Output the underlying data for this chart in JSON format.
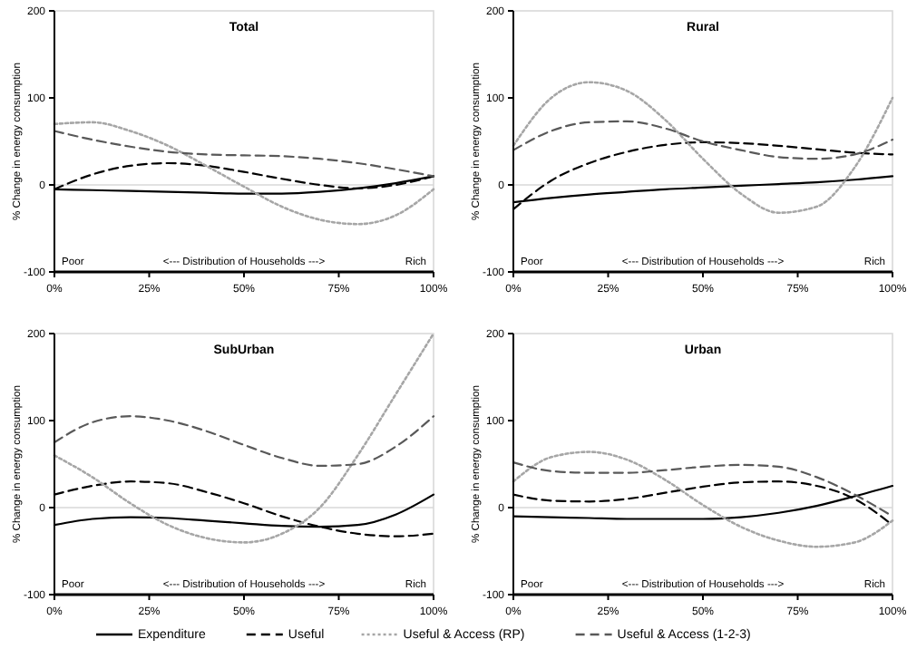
{
  "chart_data": [
    {
      "type": "line",
      "title": "Total",
      "ylabel": "% Change in energy consumption",
      "x": [
        0,
        10,
        20,
        30,
        40,
        50,
        60,
        70,
        80,
        90,
        100
      ],
      "xlim": [
        0,
        100
      ],
      "xticks": [
        {
          "value": 0,
          "label": "0%"
        },
        {
          "value": 25,
          "label": "25%"
        },
        {
          "value": 50,
          "label": "50%"
        },
        {
          "value": 75,
          "label": "75%"
        },
        {
          "value": 100,
          "label": "100%"
        }
      ],
      "ylim": [
        -100,
        200
      ],
      "yticks": [
        -100,
        0,
        100,
        200
      ],
      "grid": false,
      "legend": "bottom",
      "marker": "none",
      "annotations": [
        "Poor",
        "<--- Distribution of Households --->",
        "Rich"
      ],
      "ref_lines": [
        {
          "axis": "y",
          "value": 0,
          "color": "#d9d9d9"
        }
      ],
      "series": [
        {
          "name": "Expenditure",
          "color": "#000000",
          "line_style": "solid",
          "values": [
            -5,
            -6,
            -7,
            -8,
            -9,
            -10,
            -10,
            -8,
            -4,
            2,
            10
          ]
        },
        {
          "name": "Useful",
          "color": "#000000",
          "line_style": "dashed",
          "values": [
            -5,
            12,
            22,
            25,
            22,
            15,
            7,
            0,
            -4,
            0,
            10
          ]
        },
        {
          "name": "Useful & Access (RP)",
          "color": "#a6a6a6",
          "line_style": "dotted",
          "values": [
            70,
            72,
            62,
            45,
            22,
            -2,
            -25,
            -40,
            -45,
            -35,
            -5
          ]
        },
        {
          "name": "Useful & Access (1-2-3)",
          "color": "#595959",
          "line_style": "dashed",
          "values": [
            62,
            52,
            44,
            38,
            35,
            34,
            33,
            30,
            25,
            18,
            10
          ]
        }
      ]
    },
    {
      "type": "line",
      "title": "Rural",
      "ylabel": "% Change in energy consumption",
      "x": [
        0,
        10,
        20,
        30,
        40,
        50,
        60,
        70,
        80,
        90,
        100
      ],
      "xlim": [
        0,
        100
      ],
      "xticks": [
        {
          "value": 0,
          "label": "0%"
        },
        {
          "value": 25,
          "label": "25%"
        },
        {
          "value": 50,
          "label": "50%"
        },
        {
          "value": 75,
          "label": "75%"
        },
        {
          "value": 100,
          "label": "100%"
        }
      ],
      "ylim": [
        -100,
        200
      ],
      "yticks": [
        -100,
        0,
        100,
        200
      ],
      "grid": false,
      "legend": false,
      "marker": "none",
      "annotations": [
        "Poor",
        "<--- Distribution of Households --->",
        "Rich"
      ],
      "ref_lines": [
        {
          "axis": "y",
          "value": 0,
          "color": "#d9d9d9"
        }
      ],
      "series": [
        {
          "color": "#000000",
          "line_style": "solid",
          "values": [
            -20,
            -15,
            -11,
            -8,
            -5,
            -3,
            -1,
            1,
            3,
            6,
            10
          ]
        },
        {
          "color": "#000000",
          "line_style": "dashed",
          "values": [
            -28,
            5,
            25,
            38,
            46,
            49,
            48,
            45,
            41,
            37,
            35
          ]
        },
        {
          "color": "#a6a6a6",
          "line_style": "dotted",
          "values": [
            45,
            100,
            118,
            108,
            75,
            30,
            -10,
            -32,
            -25,
            20,
            100
          ]
        },
        {
          "color": "#595959",
          "line_style": "dashed",
          "values": [
            40,
            62,
            72,
            73,
            65,
            50,
            40,
            32,
            30,
            35,
            52
          ]
        }
      ]
    },
    {
      "type": "line",
      "title": "SubUrban",
      "ylabel": "% Change in energy consumption",
      "x": [
        0,
        10,
        20,
        30,
        40,
        50,
        60,
        70,
        80,
        90,
        100
      ],
      "xlim": [
        0,
        100
      ],
      "xticks": [
        {
          "value": 0,
          "label": "0%"
        },
        {
          "value": 25,
          "label": "25%"
        },
        {
          "value": 50,
          "label": "50%"
        },
        {
          "value": 75,
          "label": "75%"
        },
        {
          "value": 100,
          "label": "100%"
        }
      ],
      "ylim": [
        -100,
        200
      ],
      "yticks": [
        -100,
        0,
        100,
        200
      ],
      "grid": false,
      "legend": false,
      "marker": "none",
      "annotations": [
        "Poor",
        "<--- Distribution of Households --->",
        "Rich"
      ],
      "ref_lines": [
        {
          "axis": "y",
          "value": 0,
          "color": "#d9d9d9"
        }
      ],
      "series": [
        {
          "color": "#000000",
          "line_style": "solid",
          "values": [
            -20,
            -13,
            -11,
            -12,
            -15,
            -18,
            -21,
            -22,
            -20,
            -8,
            15
          ]
        },
        {
          "color": "#000000",
          "line_style": "dashed",
          "values": [
            15,
            25,
            30,
            28,
            18,
            5,
            -10,
            -22,
            -30,
            -33,
            -30
          ]
        },
        {
          "color": "#a6a6a6",
          "line_style": "dotted",
          "values": [
            60,
            35,
            5,
            -20,
            -35,
            -40,
            -30,
            0,
            60,
            130,
            200
          ]
        },
        {
          "color": "#595959",
          "line_style": "dashed",
          "values": [
            75,
            98,
            105,
            100,
            88,
            72,
            57,
            48,
            50,
            70,
            105
          ]
        }
      ]
    },
    {
      "type": "line",
      "title": "Urban",
      "ylabel": "% Change in energy consumption",
      "x": [
        0,
        10,
        20,
        30,
        40,
        50,
        60,
        70,
        80,
        90,
        100
      ],
      "xlim": [
        0,
        100
      ],
      "xticks": [
        {
          "value": 0,
          "label": "0%"
        },
        {
          "value": 25,
          "label": "25%"
        },
        {
          "value": 50,
          "label": "50%"
        },
        {
          "value": 75,
          "label": "75%"
        },
        {
          "value": 100,
          "label": "100%"
        }
      ],
      "ylim": [
        -100,
        200
      ],
      "yticks": [
        -100,
        0,
        100,
        200
      ],
      "grid": false,
      "legend": false,
      "marker": "none",
      "annotations": [
        "Poor",
        "<--- Distribution of Households --->",
        "Rich"
      ],
      "ref_lines": [
        {
          "axis": "y",
          "value": 0,
          "color": "#d9d9d9"
        }
      ],
      "series": [
        {
          "color": "#000000",
          "line_style": "solid",
          "values": [
            -10,
            -11,
            -12,
            -13,
            -13,
            -13,
            -11,
            -6,
            2,
            13,
            25
          ]
        },
        {
          "color": "#000000",
          "line_style": "dashed",
          "values": [
            15,
            8,
            7,
            10,
            17,
            24,
            29,
            30,
            25,
            10,
            -20
          ]
        },
        {
          "color": "#a6a6a6",
          "line_style": "dotted",
          "values": [
            30,
            58,
            64,
            55,
            32,
            3,
            -22,
            -38,
            -45,
            -40,
            -15
          ]
        },
        {
          "color": "#595959",
          "line_style": "dashed",
          "values": [
            52,
            42,
            40,
            40,
            43,
            47,
            49,
            47,
            35,
            15,
            -10
          ]
        }
      ]
    }
  ]
}
